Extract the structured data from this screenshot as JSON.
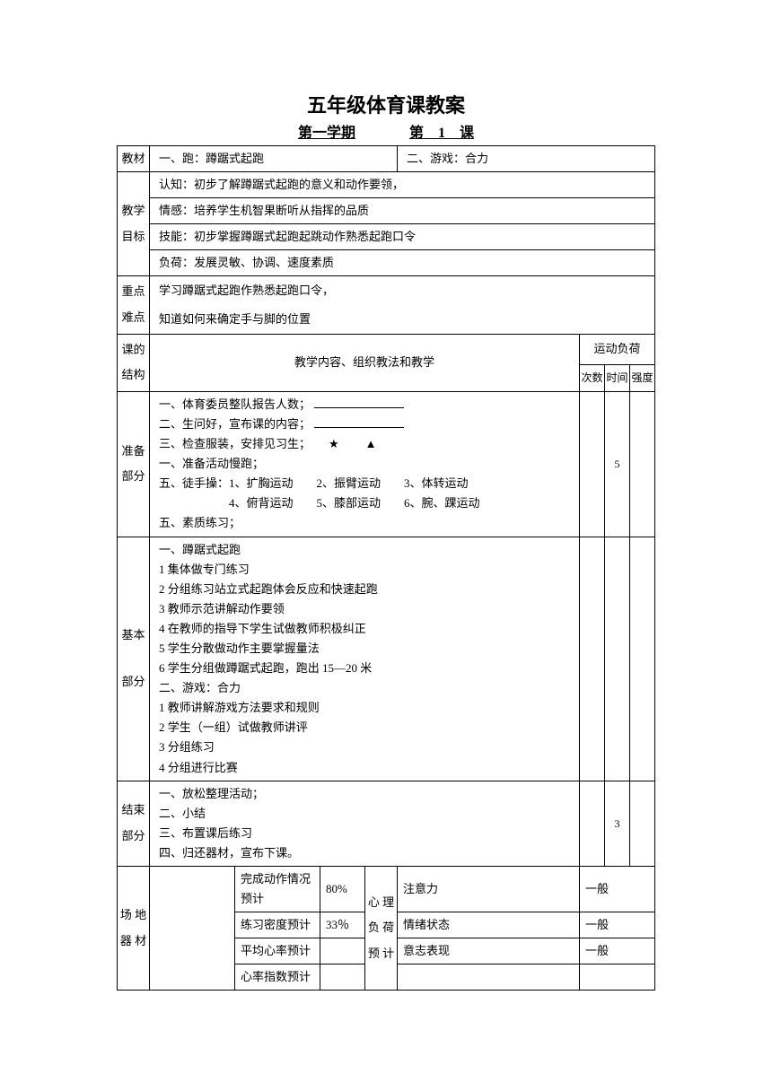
{
  "title": "五年级体育课教案",
  "subtitle_left": "第一学期",
  "subtitle_mid": "第",
  "subtitle_num": "1",
  "subtitle_right": "课",
  "labels": {
    "textbook": "教材",
    "goals": "教学目标",
    "key": "重点难点",
    "structure": "课的结构",
    "content_header": "教学内容、组织教法和教学",
    "load": "运动负荷",
    "count": "次数",
    "time": "时间",
    "intensity": "强度",
    "prep": "准备部分",
    "main": "基本部分",
    "end": "结束部分",
    "venue": "场 地器 材",
    "psych": "心 理负 荷预 计"
  },
  "textbook_content": {
    "c1": "一、跑：蹲踞式起跑",
    "c2": "二、游戏：合力"
  },
  "goals": {
    "g1": "认知：初步了解蹲踞式起跑的意义和动作要领，",
    "g2": "情感：培养学生机智果断听从指挥的品质",
    "g3": "技能：初步掌握蹲踞式起跑起跳动作熟悉起跑口令",
    "g4": "负荷：发展灵敏、协调、速度素质"
  },
  "key_points": {
    "k1": "学习蹲踞式起跑作熟悉起跑口令，",
    "k2": "知道如何来确定手与脚的位置"
  },
  "prep_content": {
    "p1": "一、体育委员整队报告人数；",
    "p2": "二、生问好，宣布课的内容；",
    "p3": "三、检查服装，安排见习生；",
    "p4": "一、准备活动慢跑；",
    "p5": "五、徒手操：1、扩胸运动　　2、振臂运动　　3、体转运动",
    "p6": "　　　　　　4、俯背运动　　5、膝部运动　　6、腕、踝运动",
    "p7": "五、素质练习；",
    "symbols": "★　▲"
  },
  "prep_time": "5",
  "main_content": {
    "m1": "一、蹲踞式起跑",
    "m2": "1 集体做专门练习",
    "m3": "2 分组练习站立式起跑体会反应和快速起跑",
    "m4": "3 教师示范讲解动作要领",
    "m5": "4 在教师的指导下学生试做教师积极纠正",
    "m6": "5 学生分散做动作主要掌握量法",
    "m7": "6 学生分组做蹲踞式起跑，跑出 15—20 米",
    "m8": "二、游戏：合力",
    "m9": "1 教师讲解游戏方法要求和规则",
    "m10": "2 学生（一组）试做教师讲评",
    "m11": "3 分组练习",
    "m12": "4 分组进行比赛"
  },
  "end_content": {
    "e1": "一、放松整理活动；",
    "e2": "二、小结",
    "e3": "三、布置课后练习",
    "e4": "四、归还器材，宣布下课。"
  },
  "end_time": "3",
  "bottom": {
    "r1_label": "完成动作情况预计",
    "r1_val": "80%",
    "r2_label": "练习密度预计",
    "r2_val": "33％",
    "r3_label": "平均心率预计",
    "r4_label": "心率指数预计",
    "p1_label": "注意力",
    "p1_val": "一般",
    "p2_label": "情绪状态",
    "p2_val": "一般",
    "p3_label": "意志表现",
    "p3_val": "一般"
  }
}
